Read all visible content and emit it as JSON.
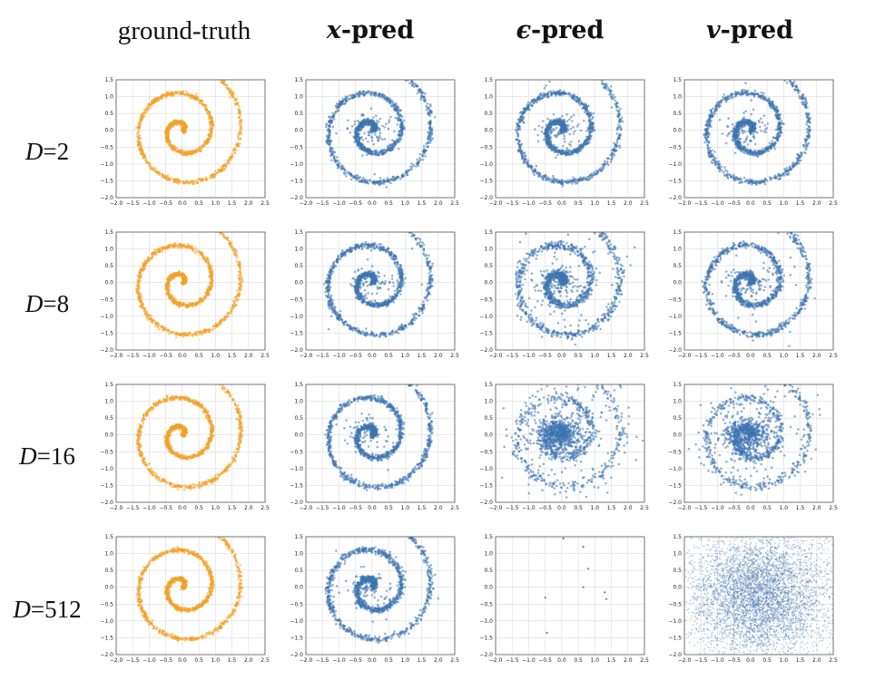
{
  "figure": {
    "columns": [
      {
        "id": "ground-truth",
        "label": "ground-truth",
        "symbol": "",
        "suffix": ""
      },
      {
        "id": "x-pred",
        "label": "",
        "symbol": "x",
        "suffix": "-pred"
      },
      {
        "id": "eps-pred",
        "label": "",
        "symbol": "ϵ",
        "suffix": "-pred"
      },
      {
        "id": "v-pred",
        "label": "",
        "symbol": "v",
        "suffix": "-pred"
      }
    ],
    "rows": [
      {
        "var": "D",
        "eq": "=",
        "value": "2"
      },
      {
        "var": "D",
        "eq": "=",
        "value": "8"
      },
      {
        "var": "D",
        "eq": "=",
        "value": "16"
      },
      {
        "var": "D",
        "eq": "=",
        "value": "512"
      }
    ],
    "colors": {
      "ground_truth": "#F2A22A",
      "predicted": "#3E74B0",
      "grid": "#dcdcdc"
    }
  },
  "chart_data": {
    "type": "scatter",
    "description_axes": {
      "xlim": [
        -2.0,
        2.5
      ],
      "ylim": [
        -2.0,
        1.5
      ],
      "xticks": [
        "−2.0",
        "−1.5",
        "−1.0",
        "−0.5",
        "0.0",
        "0.5",
        "1.0",
        "1.5",
        "2.0",
        "2.5"
      ],
      "yticks": [
        "1.5",
        "1.0",
        "0.5",
        "0.0",
        "−0.5",
        "−1.0",
        "−1.5",
        "−2.0"
      ],
      "grid": true
    },
    "spiral": {
      "theta_start": 0.0,
      "theta_end": 14.6,
      "radius_per_radian": 0.14,
      "noise_std": 0.035
    },
    "panels": [
      {
        "row": "D=2",
        "col": "ground-truth",
        "kind": "spiral",
        "color": "#F2A22A",
        "spread": 0.03,
        "center_blob": 0,
        "scatter_frac": 0.0
      },
      {
        "row": "D=2",
        "col": "x-pred",
        "kind": "spiral",
        "color": "#3E74B0",
        "spread": 0.04,
        "center_blob": 0.05,
        "scatter_frac": 0.01
      },
      {
        "row": "D=2",
        "col": "ϵ-pred",
        "kind": "spiral",
        "color": "#3E74B0",
        "spread": 0.04,
        "center_blob": 0.05,
        "scatter_frac": 0.01
      },
      {
        "row": "D=2",
        "col": "v-pred",
        "kind": "spiral",
        "color": "#3E74B0",
        "spread": 0.04,
        "center_blob": 0.05,
        "scatter_frac": 0.01
      },
      {
        "row": "D=8",
        "col": "ground-truth",
        "kind": "spiral",
        "color": "#F2A22A",
        "spread": 0.03,
        "center_blob": 0,
        "scatter_frac": 0.0
      },
      {
        "row": "D=8",
        "col": "x-pred",
        "kind": "spiral",
        "color": "#3E74B0",
        "spread": 0.04,
        "center_blob": 0.05,
        "scatter_frac": 0.01
      },
      {
        "row": "D=8",
        "col": "ϵ-pred",
        "kind": "spiral",
        "color": "#3E74B0",
        "spread": 0.06,
        "center_blob": 0.05,
        "scatter_frac": 0.1
      },
      {
        "row": "D=8",
        "col": "v-pred",
        "kind": "spiral",
        "color": "#3E74B0",
        "spread": 0.045,
        "center_blob": 0.05,
        "scatter_frac": 0.03
      },
      {
        "row": "D=16",
        "col": "ground-truth",
        "kind": "spiral",
        "color": "#F2A22A",
        "spread": 0.03,
        "center_blob": 0,
        "scatter_frac": 0.0
      },
      {
        "row": "D=16",
        "col": "x-pred",
        "kind": "spiral",
        "color": "#3E74B0",
        "spread": 0.04,
        "center_blob": 0.05,
        "scatter_frac": 0.01
      },
      {
        "row": "D=16",
        "col": "ϵ-pred",
        "kind": "spiral",
        "color": "#3E74B0",
        "spread": 0.07,
        "center_blob": 0.35,
        "scatter_frac": 0.25
      },
      {
        "row": "D=16",
        "col": "v-pred",
        "kind": "spiral",
        "color": "#3E74B0",
        "spread": 0.06,
        "center_blob": 0.3,
        "scatter_frac": 0.15
      },
      {
        "row": "D=512",
        "col": "ground-truth",
        "kind": "spiral",
        "color": "#F2A22A",
        "spread": 0.03,
        "center_blob": 0,
        "scatter_frac": 0.0
      },
      {
        "row": "D=512",
        "col": "x-pred",
        "kind": "spiral",
        "color": "#3E74B0",
        "spread": 0.045,
        "center_blob": 0.05,
        "scatter_frac": 0.03
      },
      {
        "row": "D=512",
        "col": "ϵ-pred",
        "kind": "sparse",
        "color": "#3E74B0",
        "points": [
          [
            0.05,
            1.45
          ],
          [
            0.65,
            1.2
          ],
          [
            0.8,
            0.55
          ],
          [
            0.65,
            0.0
          ],
          [
            -0.5,
            -0.3
          ],
          [
            1.3,
            -0.15
          ],
          [
            1.35,
            -0.35
          ],
          [
            -0.45,
            -1.35
          ]
        ]
      },
      {
        "row": "D=512",
        "col": "v-pred",
        "kind": "noise",
        "color": "#3E74B0",
        "std": 1.0,
        "count": 5000
      }
    ]
  }
}
